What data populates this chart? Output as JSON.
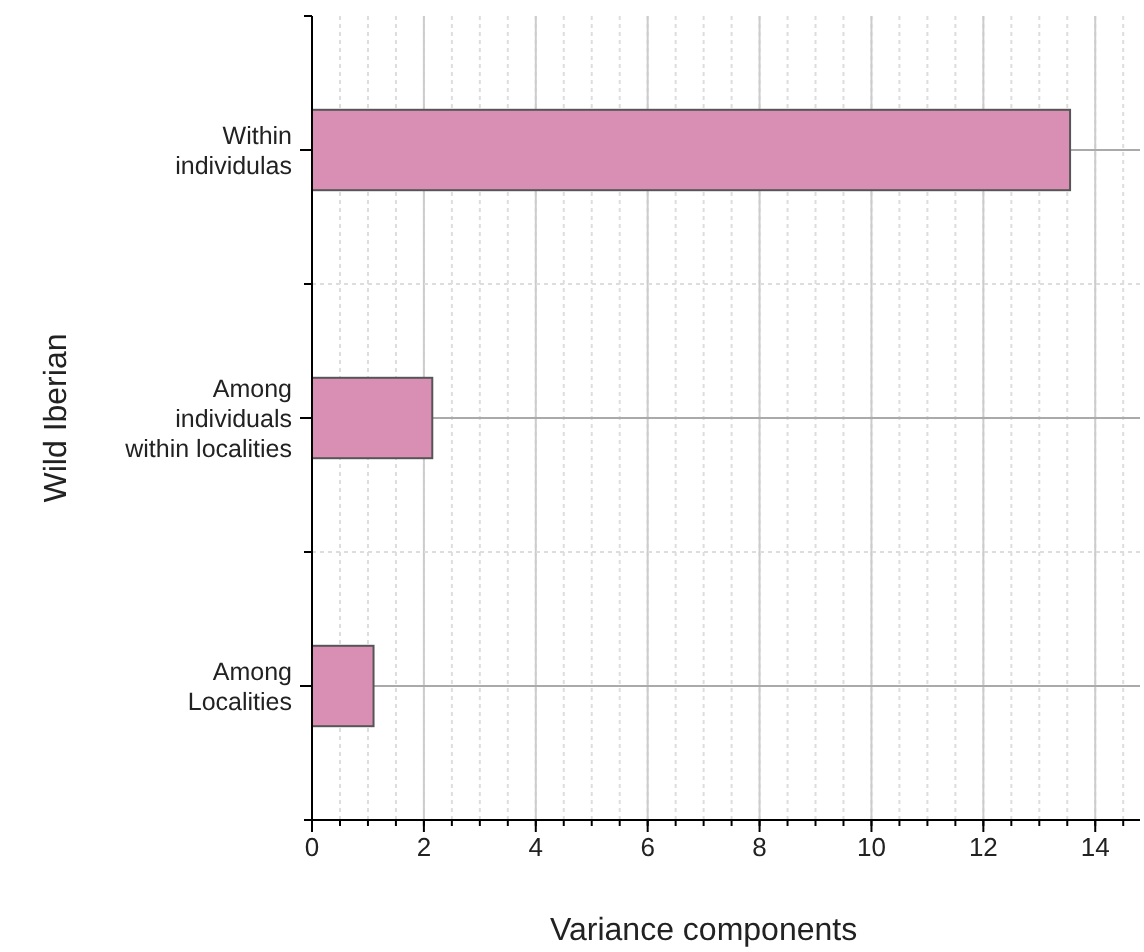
{
  "chart_data": {
    "type": "bar",
    "orientation": "horizontal",
    "xlabel": "Variance components",
    "ylabel": "Wild Iberian",
    "categories": [
      "Within\nindividulas",
      "Among\nindividuals\nwithin localities",
      "Among\nLocalities"
    ],
    "values": [
      13.55,
      2.15,
      1.1
    ],
    "color": "#d98fb4",
    "xlim": [
      0,
      14.8
    ],
    "xticks": [
      0,
      2,
      4,
      6,
      8,
      10,
      12,
      14
    ],
    "grid": true
  }
}
